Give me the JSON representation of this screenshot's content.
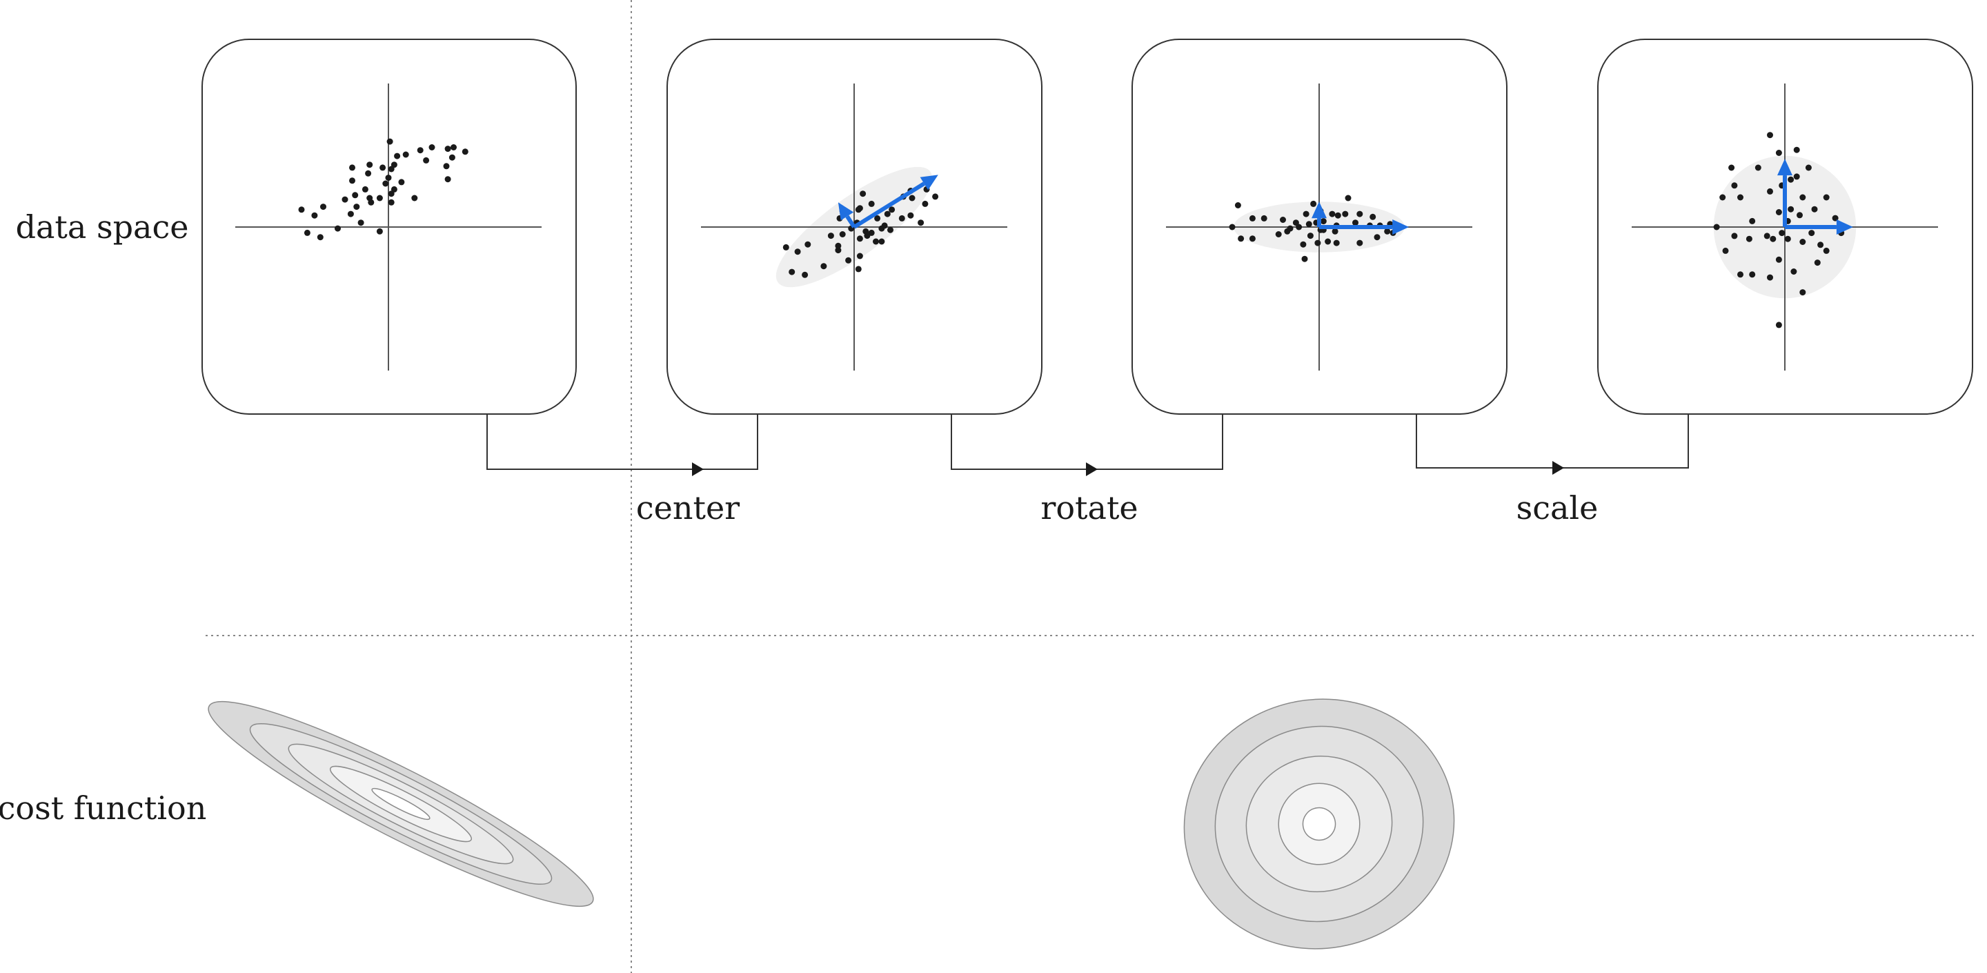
{
  "labels": {
    "data_space": "data space",
    "cost_function": "cost function",
    "steps": [
      "center",
      "rotate",
      "scale"
    ]
  },
  "colors": {
    "vector": "#1f6fe0",
    "covariance": "#efefef",
    "dot": "#1a1a1a",
    "contour_fills": [
      "#d9d9d9",
      "#e2e2e2",
      "#eaeaea",
      "#f3f3f3",
      "#ffffff"
    ]
  },
  "panels": [
    {
      "name": "raw-data",
      "points": [
        [
          -6.0,
          1.2
        ],
        [
          -5.6,
          -0.4
        ],
        [
          -5.1,
          0.8
        ],
        [
          -4.7,
          -0.7
        ],
        [
          -4.5,
          1.4
        ],
        [
          -3.5,
          -0.1
        ],
        [
          -3.0,
          1.9
        ],
        [
          -2.6,
          0.9
        ],
        [
          -2.5,
          4.1
        ],
        [
          -2.5,
          3.2
        ],
        [
          -2.3,
          2.2
        ],
        [
          -2.2,
          1.4
        ],
        [
          -1.9,
          0.3
        ],
        [
          -1.6,
          2.6
        ],
        [
          -1.4,
          3.7
        ],
        [
          -1.3,
          2.0
        ],
        [
          -1.3,
          4.3
        ],
        [
          -1.2,
          1.7
        ],
        [
          -0.6,
          -0.3
        ],
        [
          -0.6,
          2.0
        ],
        [
          -0.4,
          4.1
        ],
        [
          -0.2,
          3.0
        ],
        [
          0.2,
          4.0
        ],
        [
          0.2,
          2.3
        ],
        [
          0.0,
          3.4
        ],
        [
          0.2,
          1.7
        ],
        [
          0.4,
          2.6
        ],
        [
          0.1,
          5.9
        ],
        [
          0.4,
          4.3
        ],
        [
          0.6,
          4.9
        ],
        [
          0.9,
          3.1
        ],
        [
          1.2,
          5.0
        ],
        [
          1.8,
          2.0
        ],
        [
          2.2,
          5.3
        ],
        [
          2.6,
          4.6
        ],
        [
          3.0,
          5.5
        ],
        [
          4.0,
          4.2
        ],
        [
          4.1,
          3.3
        ],
        [
          4.1,
          5.4
        ],
        [
          4.4,
          4.8
        ],
        [
          4.5,
          5.5
        ],
        [
          5.3,
          5.2
        ]
      ],
      "ellipse": null,
      "vectors": []
    },
    {
      "name": "centered-data",
      "points": [
        [
          -4.7,
          -1.4
        ],
        [
          -4.3,
          -3.1
        ],
        [
          -3.9,
          -1.7
        ],
        [
          -3.4,
          -3.3
        ],
        [
          -3.2,
          -1.2
        ],
        [
          -2.1,
          -2.7
        ],
        [
          -1.6,
          -0.6
        ],
        [
          -1.1,
          -1.6
        ],
        [
          -1.1,
          -1.3
        ],
        [
          -1.0,
          0.6
        ],
        [
          -0.8,
          1.1
        ],
        [
          -0.8,
          -0.5
        ],
        [
          -0.4,
          -2.3
        ],
        [
          -0.2,
          -0.1
        ],
        [
          0.2,
          0.3
        ],
        [
          0.3,
          1.2
        ],
        [
          0.4,
          -2.0
        ],
        [
          0.4,
          -0.8
        ],
        [
          0.4,
          1.3
        ],
        [
          0.8,
          -0.3
        ],
        [
          0.9,
          -0.6
        ],
        [
          1.2,
          -0.4
        ],
        [
          1.5,
          -1.0
        ],
        [
          1.6,
          0.6
        ],
        [
          1.9,
          -0.1
        ],
        [
          1.9,
          -1.0
        ],
        [
          0.3,
          -2.9
        ],
        [
          1.2,
          1.6
        ],
        [
          0.6,
          2.3
        ],
        [
          2.1,
          0.1
        ],
        [
          2.3,
          0.9
        ],
        [
          2.5,
          -0.2
        ],
        [
          2.6,
          1.2
        ],
        [
          3.3,
          0.6
        ],
        [
          3.4,
          2.1
        ],
        [
          3.9,
          2.5
        ],
        [
          4.0,
          2.0
        ],
        [
          3.9,
          0.8
        ],
        [
          4.6,
          0.3
        ],
        [
          5.0,
          2.6
        ],
        [
          4.9,
          1.6
        ],
        [
          5.6,
          2.1
        ]
      ],
      "ellipse": {
        "rx": 6.5,
        "ry": 2.0,
        "angle_deg": 36
      },
      "vectors": [
        [
          5.8,
          3.6
        ],
        [
          -1.1,
          1.7
        ]
      ]
    },
    {
      "name": "rotated-data",
      "points": [
        [
          -6.0,
          0.0
        ],
        [
          -5.6,
          1.5
        ],
        [
          -5.4,
          -0.8
        ],
        [
          -4.6,
          0.6
        ],
        [
          -4.6,
          -0.8
        ],
        [
          -3.8,
          0.6
        ],
        [
          -2.8,
          -0.5
        ],
        [
          -2.5,
          0.5
        ],
        [
          -2.2,
          -0.3
        ],
        [
          -2.0,
          -0.1
        ],
        [
          -1.6,
          0.3
        ],
        [
          -1.4,
          0.0
        ],
        [
          -1.1,
          -1.2
        ],
        [
          -0.9,
          0.9
        ],
        [
          -0.7,
          0.2
        ],
        [
          -0.4,
          1.6
        ],
        [
          -0.6,
          -0.6
        ],
        [
          -1.0,
          -2.2
        ],
        [
          -0.2,
          0.3
        ],
        [
          -0.1,
          -1.1
        ],
        [
          0.1,
          1.1
        ],
        [
          0.1,
          -0.2
        ],
        [
          0.3,
          -0.2
        ],
        [
          0.3,
          0.4
        ],
        [
          0.6,
          -1.0
        ],
        [
          0.9,
          0.9
        ],
        [
          1.1,
          -0.3
        ],
        [
          1.2,
          0.1
        ],
        [
          1.2,
          -1.1
        ],
        [
          1.3,
          0.8
        ],
        [
          1.8,
          0.9
        ],
        [
          2.0,
          2.0
        ],
        [
          2.5,
          0.3
        ],
        [
          2.8,
          0.9
        ],
        [
          2.8,
          -1.1
        ],
        [
          3.5,
          0.1
        ],
        [
          3.7,
          0.7
        ],
        [
          4.0,
          -0.7
        ],
        [
          4.2,
          0.1
        ],
        [
          4.7,
          -0.3
        ],
        [
          4.9,
          0.2
        ],
        [
          5.1,
          -0.4
        ]
      ],
      "ellipse": {
        "rx": 5.9,
        "ry": 1.75,
        "angle_deg": 0
      },
      "vectors": [
        [
          6.2,
          0.0
        ],
        [
          0.0,
          1.75
        ]
      ]
    },
    {
      "name": "scaled-data",
      "points": [
        [
          -2.3,
          0.0
        ],
        [
          -2.1,
          1.0
        ],
        [
          -2.0,
          -0.8
        ],
        [
          -1.8,
          2.0
        ],
        [
          -1.7,
          -0.3
        ],
        [
          -1.7,
          1.4
        ],
        [
          -1.5,
          -1.6
        ],
        [
          -1.5,
          1.0
        ],
        [
          -1.2,
          -0.4
        ],
        [
          -1.1,
          -1.6
        ],
        [
          -1.1,
          0.2
        ],
        [
          -0.9,
          2.0
        ],
        [
          -0.6,
          -0.3
        ],
        [
          -0.5,
          1.2
        ],
        [
          -0.5,
          -1.7
        ],
        [
          -0.5,
          3.1
        ],
        [
          -0.4,
          -0.4
        ],
        [
          -0.2,
          0.5
        ],
        [
          -0.2,
          -1.1
        ],
        [
          -0.2,
          2.5
        ],
        [
          -0.1,
          -0.2
        ],
        [
          -0.1,
          1.4
        ],
        [
          -0.2,
          -3.3
        ],
        [
          0.1,
          0.2
        ],
        [
          0.1,
          -0.4
        ],
        [
          0.2,
          1.6
        ],
        [
          0.2,
          0.6
        ],
        [
          0.3,
          -1.5
        ],
        [
          0.4,
          1.7
        ],
        [
          0.4,
          2.6
        ],
        [
          0.5,
          0.4
        ],
        [
          0.6,
          -0.5
        ],
        [
          0.6,
          1.0
        ],
        [
          0.6,
          -2.2
        ],
        [
          0.8,
          2.0
        ],
        [
          0.9,
          -0.2
        ],
        [
          1.0,
          0.6
        ],
        [
          1.1,
          -1.2
        ],
        [
          1.2,
          -0.6
        ],
        [
          1.4,
          -0.8
        ],
        [
          1.4,
          1.0
        ],
        [
          1.7,
          0.3
        ],
        [
          1.9,
          -0.2
        ]
      ],
      "ellipse": {
        "rx": 2.4,
        "ry": 2.4,
        "angle_deg": 0
      },
      "vectors": [
        [
          2.3,
          0.0
        ],
        [
          0.0,
          2.3
        ]
      ]
    }
  ],
  "cost_before": {
    "angle_deg": 27,
    "levels": [
      [
        6.0,
        0.95
      ],
      [
        4.7,
        0.75
      ],
      [
        3.5,
        0.56
      ],
      [
        2.2,
        0.36
      ],
      [
        0.9,
        0.15
      ]
    ]
  },
  "cost_after": {
    "angle_deg": -10,
    "levels": [
      [
        1.0,
        0.92
      ],
      [
        0.77,
        0.72
      ],
      [
        0.54,
        0.5
      ],
      [
        0.3,
        0.3
      ],
      [
        0.12,
        0.12
      ]
    ]
  }
}
